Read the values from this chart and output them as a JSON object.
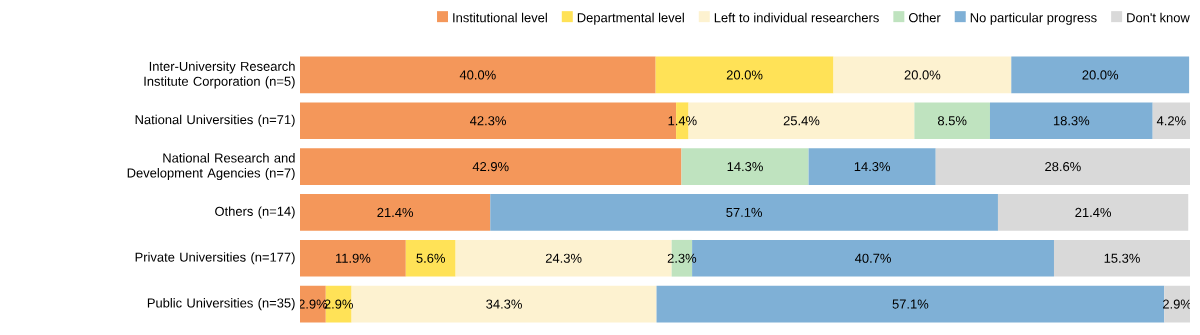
{
  "chart_data": {
    "type": "bar",
    "orientation": "horizontal",
    "stacked": true,
    "legend": "top right",
    "categories": [
      "Inter-University Research Institute Corporation (n=5)",
      "National Universities (n=71)",
      "National Research and Development Agencies (n=7)",
      "Others (n=14)",
      "Private Universities (n=177)",
      "Public Universities (n=35)"
    ],
    "series": [
      {
        "name": "Institutional level",
        "color": "#f4975a",
        "values": [
          40.0,
          42.3,
          42.9,
          21.4,
          11.9,
          2.9
        ],
        "value_labels": [
          "40.0%",
          "42.3%",
          "42.9%",
          "21.4%",
          "11.9%",
          "2.9%"
        ]
      },
      {
        "name": "Departmental level",
        "color": "#ffe257",
        "values": [
          20.0,
          1.4,
          null,
          null,
          5.6,
          2.9
        ],
        "value_labels": [
          "20.0%",
          "1.4%",
          null,
          null,
          "5.6%",
          "2.9%"
        ]
      },
      {
        "name": "Left to individual researchers",
        "color": "#fdf2d0",
        "values": [
          20.0,
          25.4,
          null,
          null,
          24.3,
          34.3
        ],
        "value_labels": [
          "20.0%",
          "25.4%",
          null,
          null,
          "24.3%",
          "34.3%"
        ]
      },
      {
        "name": "Other",
        "color": "#bfe3bf",
        "values": [
          null,
          8.5,
          14.3,
          null,
          2.3,
          null
        ],
        "value_labels": [
          null,
          "8.5%",
          "14.3%",
          null,
          "2.3%",
          null
        ]
      },
      {
        "name": "No particular progress",
        "color": "#7fb0d6",
        "values": [
          20.0,
          18.3,
          14.3,
          57.1,
          40.7,
          57.1
        ],
        "value_labels": [
          "20.0%",
          "18.3%",
          "14.3%",
          "57.1%",
          "40.7%",
          "57.1%"
        ]
      },
      {
        "name": "Don't know",
        "color": "#d9d9d9",
        "values": [
          null,
          4.2,
          28.6,
          21.4,
          15.3,
          2.9
        ],
        "value_labels": [
          null,
          "4.2%",
          "28.6%",
          "21.4%",
          "15.3%",
          "2.9%"
        ]
      }
    ]
  }
}
